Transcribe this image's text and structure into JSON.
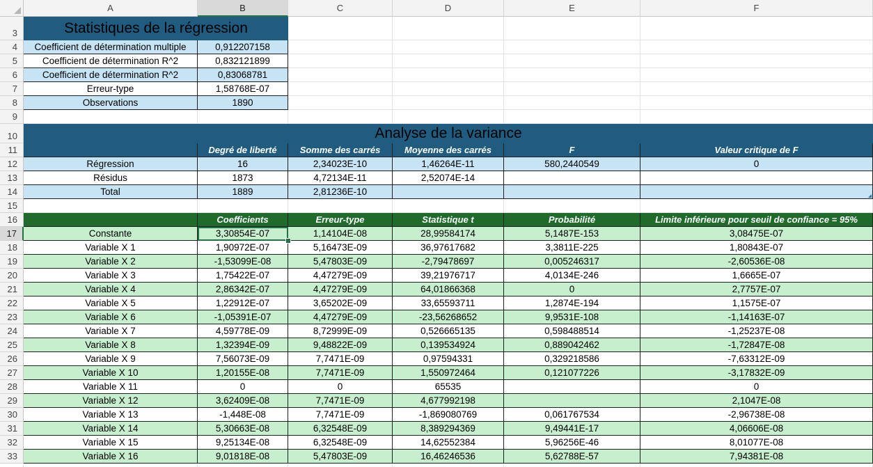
{
  "columns": [
    "A",
    "B",
    "C",
    "D",
    "E",
    "F"
  ],
  "selected_column": "B",
  "selected_row": "17",
  "rows": [
    "3",
    "4",
    "5",
    "6",
    "7",
    "8",
    "9",
    "10",
    "11",
    "12",
    "13",
    "14",
    "15",
    "16",
    "17",
    "18",
    "19",
    "20",
    "21",
    "22",
    "23",
    "24",
    "25",
    "26",
    "27",
    "28",
    "29",
    "30",
    "31",
    "32",
    "33"
  ],
  "regression_stats": {
    "title": "Statistiques de la régression",
    "rows": [
      [
        "Coefficient de détermination multiple",
        "0,912207158"
      ],
      [
        "Coefficient de détermination R^2",
        "0,832121899"
      ],
      [
        "Coefficient de détermination R^2",
        "0,83068781"
      ],
      [
        "Erreur-type",
        "1,58768E-07"
      ],
      [
        "Observations",
        "1890"
      ]
    ]
  },
  "anova": {
    "title": "Analyse de la variance",
    "headers": [
      "",
      "Degré de liberté",
      "Somme des carrés",
      "Moyenne des carrés",
      "F",
      "Valeur critique de F"
    ],
    "rows": [
      [
        "Régression",
        "16",
        "2,34023E-10",
        "1,46264E-11",
        "580,2440549",
        "0"
      ],
      [
        "Résidus",
        "1873",
        "4,72134E-11",
        "2,52074E-14",
        "",
        ""
      ],
      [
        "Total",
        "1889",
        "2,81236E-10",
        "",
        "",
        ""
      ]
    ]
  },
  "coefficients": {
    "headers": [
      "",
      "Coefficients",
      "Erreur-type",
      "Statistique t",
      "Probabilité",
      "Limite inférieure pour seuil de confiance = 95%"
    ],
    "rows": [
      [
        "Constante",
        "3,30854E-07",
        "1,14104E-08",
        "28,99584174",
        "5,1487E-153",
        "3,08475E-07"
      ],
      [
        "Variable X 1",
        "1,90972E-07",
        "5,16473E-09",
        "36,97617682",
        "3,3811E-225",
        "1,80843E-07"
      ],
      [
        "Variable X 2",
        "-1,53099E-08",
        "5,47803E-09",
        "-2,79478697",
        "0,005246317",
        "-2,60536E-08"
      ],
      [
        "Variable X 3",
        "1,75422E-07",
        "4,47279E-09",
        "39,21976717",
        "4,0134E-246",
        "1,6665E-07"
      ],
      [
        "Variable X 4",
        "2,86342E-07",
        "4,47279E-09",
        "64,01866368",
        "0",
        "2,7757E-07"
      ],
      [
        "Variable X 5",
        "1,22912E-07",
        "3,65202E-09",
        "33,65593711",
        "1,2874E-194",
        "1,1575E-07"
      ],
      [
        "Variable X 6",
        "-1,05391E-07",
        "4,47279E-09",
        "-23,56268652",
        "9,9531E-108",
        "-1,14163E-07"
      ],
      [
        "Variable X 7",
        "4,59778E-09",
        "8,72999E-09",
        "0,526665135",
        "0,598488514",
        "-1,25237E-08"
      ],
      [
        "Variable X 8",
        "1,32394E-09",
        "9,48822E-09",
        "0,139534924",
        "0,889042462",
        "-1,72847E-08"
      ],
      [
        "Variable X 9",
        "7,56073E-09",
        "7,7471E-09",
        "0,97594331",
        "0,329218586",
        "-7,63312E-09"
      ],
      [
        "Variable X 10",
        "1,20155E-08",
        "7,7471E-09",
        "1,550972464",
        "0,121077226",
        "-3,17832E-09"
      ],
      [
        "Variable X 11",
        "0",
        "0",
        "65535",
        "",
        "0"
      ],
      [
        "Variable X 12",
        "3,62409E-08",
        "7,7471E-09",
        "4,677992198",
        "",
        "2,1047E-08"
      ],
      [
        "Variable X 13",
        "-1,448E-08",
        "7,7471E-09",
        "-1,869080769",
        "0,061767534",
        "-2,96738E-08"
      ],
      [
        "Variable X 14",
        "5,30663E-08",
        "6,32548E-09",
        "8,389294369",
        "9,49441E-17",
        "4,06606E-08"
      ],
      [
        "Variable X 15",
        "9,25134E-08",
        "6,32548E-09",
        "14,62552384",
        "5,96256E-46",
        "8,01077E-08"
      ],
      [
        "Variable X 16",
        "9,01818E-08",
        "5,47803E-09",
        "16,46246536",
        "5,62788E-57",
        "7,94381E-08"
      ]
    ]
  }
}
